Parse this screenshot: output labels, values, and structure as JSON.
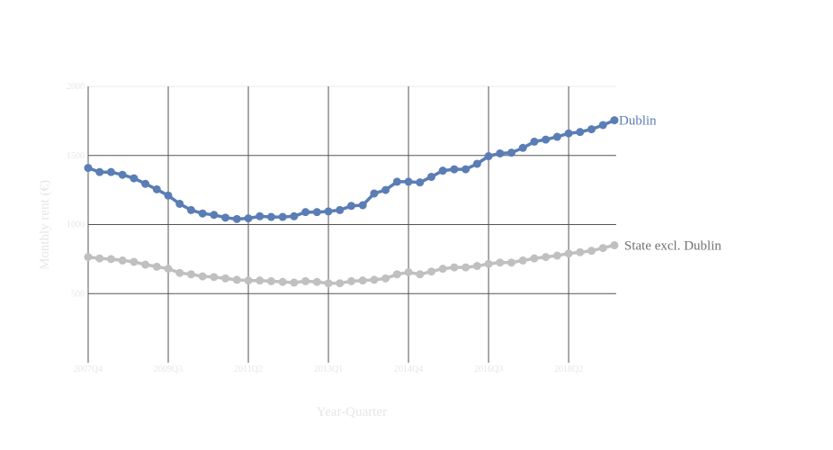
{
  "chart_data": {
    "type": "line",
    "xlabel": "Year-Quarter",
    "ylabel": "Monthly rent (€)",
    "ylim": [
      0,
      2000
    ],
    "yticks": [
      500,
      1000,
      1500,
      2000
    ],
    "grid": true,
    "x": [
      "2007Q4",
      "2008Q1",
      "2008Q2",
      "2008Q3",
      "2008Q4",
      "2009Q1",
      "2009Q2",
      "2009Q3",
      "2009Q4",
      "2010Q1",
      "2010Q2",
      "2010Q3",
      "2010Q4",
      "2011Q1",
      "2011Q2",
      "2011Q3",
      "2011Q4",
      "2012Q1",
      "2012Q2",
      "2012Q3",
      "2012Q4",
      "2013Q1",
      "2013Q2",
      "2013Q3",
      "2013Q4",
      "2014Q1",
      "2014Q2",
      "2014Q3",
      "2014Q4",
      "2015Q1",
      "2015Q2",
      "2015Q3",
      "2015Q4",
      "2016Q1",
      "2016Q2",
      "2016Q3",
      "2016Q4",
      "2017Q1",
      "2017Q2",
      "2017Q3",
      "2017Q4",
      "2018Q1",
      "2018Q2",
      "2018Q3",
      "2018Q4",
      "2019Q1",
      "2019Q2"
    ],
    "xticks": [
      "2007Q4",
      "2009Q3",
      "2011Q2",
      "2013Q1",
      "2014Q4",
      "2016Q3",
      "2018Q2"
    ],
    "series": [
      {
        "name": "Dublin",
        "color": "#5a7db5",
        "values": [
          1410,
          1380,
          1380,
          1360,
          1335,
          1295,
          1255,
          1210,
          1150,
          1105,
          1080,
          1070,
          1050,
          1040,
          1045,
          1060,
          1055,
          1055,
          1060,
          1090,
          1090,
          1095,
          1105,
          1135,
          1140,
          1225,
          1250,
          1310,
          1310,
          1305,
          1345,
          1390,
          1400,
          1400,
          1440,
          1495,
          1515,
          1520,
          1555,
          1600,
          1615,
          1635,
          1660,
          1670,
          1690,
          1720,
          1755
        ]
      },
      {
        "name": "State excl. Dublin",
        "color": "#c0c0c0",
        "values": [
          765,
          755,
          750,
          740,
          730,
          710,
          695,
          680,
          650,
          640,
          625,
          620,
          610,
          600,
          595,
          595,
          590,
          585,
          580,
          590,
          585,
          575,
          575,
          590,
          595,
          600,
          610,
          640,
          655,
          640,
          660,
          680,
          690,
          690,
          700,
          715,
          725,
          725,
          740,
          755,
          765,
          775,
          790,
          800,
          810,
          830,
          850
        ]
      }
    ]
  }
}
